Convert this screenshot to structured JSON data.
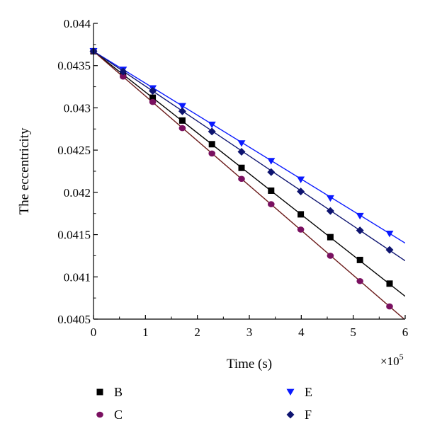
{
  "chart_data": {
    "type": "line",
    "title": "",
    "xlabel": "Time (s)",
    "ylabel": "The eccentricity",
    "x_multiplier_label": "×10",
    "x_multiplier_exponent": "5",
    "xlim": [
      0,
      6
    ],
    "ylim": [
      0.0405,
      0.044
    ],
    "xticks": [
      "0",
      "1",
      "2",
      "3",
      "4",
      "5",
      "6"
    ],
    "yticks": [
      "0.0405",
      "0.041",
      "0.0415",
      "0.042",
      "0.0425",
      "0.043",
      "0.0435",
      "0.044"
    ],
    "grid": false,
    "legend_placement": "bottom",
    "marker_x": [
      0,
      0.57,
      1.14,
      1.71,
      2.28,
      2.85,
      3.42,
      3.99,
      4.56,
      5.13,
      5.7
    ],
    "series": [
      {
        "name": "B",
        "marker": "square",
        "color": "#000000",
        "line": [
          [
            0,
            0.04367
          ],
          [
            6,
            0.04077
          ]
        ],
        "values": [
          0.04367,
          0.0434,
          0.04312,
          0.04285,
          0.04257,
          0.04229,
          0.04202,
          0.04174,
          0.04147,
          0.0412,
          0.04092
        ]
      },
      {
        "name": "C",
        "marker": "circle",
        "color": "#7a1060",
        "line_color": "#6b1a1a",
        "line": [
          [
            0,
            0.04367
          ],
          [
            6,
            0.04049
          ]
        ],
        "values": [
          0.04367,
          0.04337,
          0.04307,
          0.04276,
          0.04246,
          0.04216,
          0.04186,
          0.04156,
          0.04125,
          0.04095,
          0.04065
        ]
      },
      {
        "name": "E",
        "marker": "triangle-down",
        "color": "#0a1aff",
        "line": [
          [
            0,
            0.04367
          ],
          [
            6,
            0.0414
          ]
        ],
        "values": [
          0.04367,
          0.04345,
          0.04323,
          0.04302,
          0.0428,
          0.04258,
          0.04237,
          0.04215,
          0.04193,
          0.04172,
          0.04151
        ]
      },
      {
        "name": "F",
        "marker": "diamond",
        "color": "#0e1470",
        "line": [
          [
            0,
            0.04367
          ],
          [
            6,
            0.04119
          ]
        ],
        "values": [
          0.04367,
          0.04343,
          0.0432,
          0.04296,
          0.04272,
          0.04248,
          0.04224,
          0.04201,
          0.04178,
          0.04155,
          0.04132
        ]
      }
    ]
  }
}
